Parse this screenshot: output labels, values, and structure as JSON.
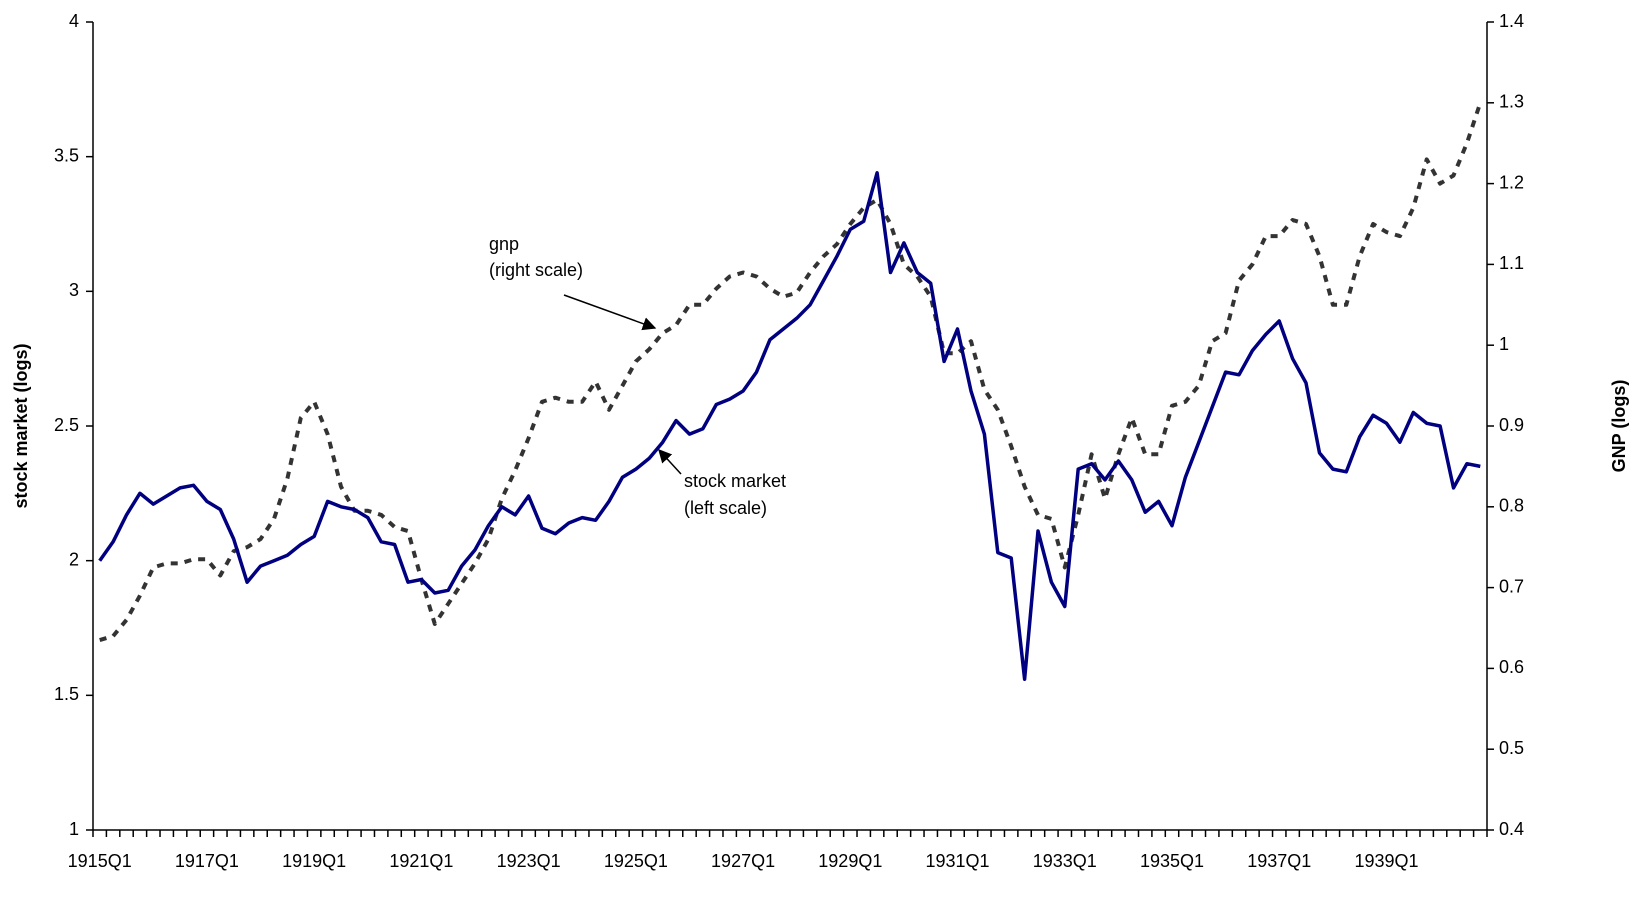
{
  "chart_data": {
    "type": "line",
    "ylabel": "stock market (logs)",
    "y2label": "GNP (logs)",
    "annotations": [
      "gnp",
      "(right scale)",
      "stock market",
      "(left scale)"
    ],
    "categories": [
      "1915Q1",
      null,
      null,
      null,
      null,
      null,
      null,
      null,
      "1917Q1",
      null,
      null,
      null,
      null,
      null,
      null,
      null,
      "1919Q1",
      null,
      null,
      null,
      null,
      null,
      null,
      null,
      "1921Q1",
      null,
      null,
      null,
      null,
      null,
      null,
      null,
      "1923Q1",
      null,
      null,
      null,
      null,
      null,
      null,
      null,
      "1925Q1",
      null,
      null,
      null,
      null,
      null,
      null,
      null,
      "1927Q1",
      null,
      null,
      null,
      null,
      null,
      null,
      null,
      "1929Q1",
      null,
      null,
      null,
      null,
      null,
      null,
      null,
      "1931Q1",
      null,
      null,
      null,
      null,
      null,
      null,
      null,
      "1933Q1",
      null,
      null,
      null,
      null,
      null,
      null,
      null,
      "1935Q1",
      null,
      null,
      null,
      null,
      null,
      null,
      null,
      "1937Q1",
      null,
      null,
      null,
      null,
      null,
      null,
      null,
      "1939Q1",
      null,
      null,
      null,
      null,
      null,
      null,
      null
    ],
    "ylim": [
      1,
      4
    ],
    "yticks": [
      1,
      1.5,
      2,
      2.5,
      3,
      3.5,
      4
    ],
    "y2lim": [
      0.4,
      1.4
    ],
    "y2ticks": [
      0.4,
      0.5,
      0.6,
      0.7,
      0.8,
      0.9,
      1,
      1.1,
      1.2,
      1.3,
      1.4
    ],
    "series": [
      {
        "name": "stock market",
        "color": "#000080",
        "dashed": false,
        "values": [
          2.0,
          2.07,
          2.17,
          2.25,
          2.21,
          2.24,
          2.27,
          2.28,
          2.22,
          2.19,
          2.08,
          1.92,
          1.98,
          2.0,
          2.02,
          2.06,
          2.09,
          2.22,
          2.2,
          2.19,
          2.16,
          2.07,
          2.06,
          1.92,
          1.93,
          1.88,
          1.89,
          1.98,
          2.04,
          2.13,
          2.2,
          2.17,
          2.24,
          2.12,
          2.1,
          2.14,
          2.16,
          2.15,
          2.22,
          2.31,
          2.34,
          2.38,
          2.44,
          2.52,
          2.47,
          2.49,
          2.58,
          2.6,
          2.63,
          2.7,
          2.82,
          2.86,
          2.9,
          2.95,
          3.04,
          3.13,
          3.23,
          3.26,
          3.44,
          3.07,
          3.18,
          3.07,
          3.03,
          2.74,
          2.86,
          2.63,
          2.47,
          2.03,
          2.01,
          1.56,
          2.11,
          1.92,
          1.83,
          2.34,
          2.36,
          2.3,
          2.37,
          2.3,
          2.18,
          2.22,
          2.13,
          2.31,
          2.44,
          2.57,
          2.7,
          2.69,
          2.78,
          2.84,
          2.89,
          2.75,
          2.66,
          2.4,
          2.34,
          2.33,
          2.46,
          2.54,
          2.51,
          2.44,
          2.55,
          2.51,
          2.5,
          2.27,
          2.36,
          2.35
        ]
      },
      {
        "name": "gnp",
        "color": "#333333",
        "dashed": true,
        "axis": "y2",
        "values": [
          0.635,
          0.64,
          0.66,
          0.69,
          0.725,
          0.73,
          0.73,
          0.735,
          0.735,
          0.715,
          0.745,
          0.75,
          0.76,
          0.785,
          0.835,
          0.91,
          0.93,
          0.89,
          0.825,
          0.795,
          0.795,
          0.79,
          0.775,
          0.77,
          0.71,
          0.655,
          0.68,
          0.705,
          0.73,
          0.76,
          0.81,
          0.845,
          0.885,
          0.93,
          0.935,
          0.93,
          0.93,
          0.955,
          0.92,
          0.95,
          0.98,
          0.995,
          1.015,
          1.025,
          1.05,
          1.05,
          1.07,
          1.085,
          1.09,
          1.085,
          1.07,
          1.06,
          1.065,
          1.09,
          1.11,
          1.125,
          1.15,
          1.17,
          1.18,
          1.15,
          1.1,
          1.085,
          1.06,
          0.99,
          0.99,
          1.005,
          0.945,
          0.92,
          0.875,
          0.825,
          0.79,
          0.785,
          0.725,
          0.79,
          0.865,
          0.81,
          0.865,
          0.91,
          0.865,
          0.865,
          0.925,
          0.93,
          0.95,
          1.005,
          1.015,
          1.08,
          1.1,
          1.135,
          1.135,
          1.155,
          1.15,
          1.11,
          1.05,
          1.05,
          1.11,
          1.15,
          1.14,
          1.135,
          1.17,
          1.23,
          1.2,
          1.21,
          1.25,
          1.3
        ]
      }
    ]
  }
}
